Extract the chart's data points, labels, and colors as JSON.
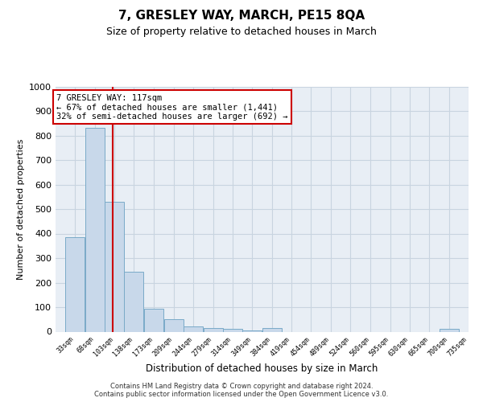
{
  "title": "7, GRESLEY WAY, MARCH, PE15 8QA",
  "subtitle": "Size of property relative to detached houses in March",
  "xlabel": "Distribution of detached houses by size in March",
  "ylabel": "Number of detached properties",
  "annotation_line1": "7 GRESLEY WAY: 117sqm",
  "annotation_line2": "← 67% of detached houses are smaller (1,441)",
  "annotation_line3": "32% of semi-detached houses are larger (692) →",
  "bin_edges": [
    33,
    68,
    103,
    138,
    173,
    209,
    244,
    279,
    314,
    349,
    384,
    419,
    454,
    489,
    524,
    560,
    595,
    630,
    665,
    700,
    735
  ],
  "bar_heights": [
    385,
    830,
    530,
    245,
    95,
    50,
    20,
    15,
    10,
    5,
    15,
    0,
    0,
    0,
    0,
    0,
    0,
    0,
    0,
    10
  ],
  "bar_color": "#c8d8ea",
  "bar_edge_color": "#7aaac8",
  "vline_color": "#cc0000",
  "vline_x": 117,
  "box_edge_color": "#cc0000",
  "ylim": [
    0,
    1000
  ],
  "yticks": [
    0,
    100,
    200,
    300,
    400,
    500,
    600,
    700,
    800,
    900,
    1000
  ],
  "background_color": "#e8eef5",
  "grid_color": "#c8d4e0",
  "footer_line1": "Contains HM Land Registry data © Crown copyright and database right 2024.",
  "footer_line2": "Contains public sector information licensed under the Open Government Licence v3.0."
}
